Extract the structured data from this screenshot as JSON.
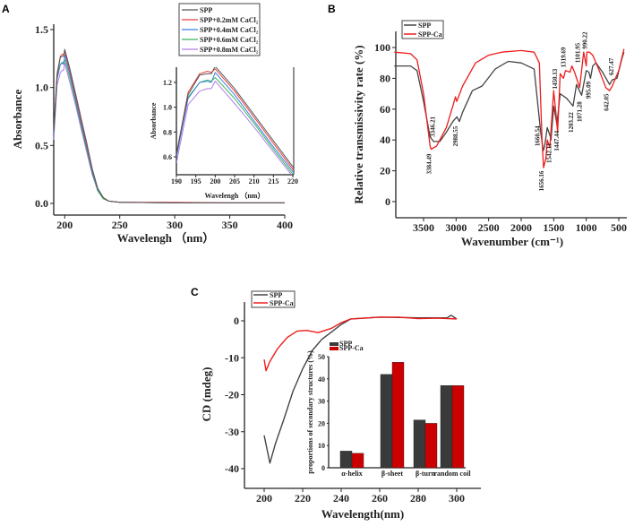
{
  "chart_data": [
    {
      "panel": "A",
      "type": "line",
      "xlabel": "Wavelengh （nm）",
      "ylabel": "Absorbance",
      "xlim": [
        190,
        400
      ],
      "ylim": [
        -0.1,
        1.5
      ],
      "xticks": [
        200,
        250,
        300,
        350,
        400
      ],
      "yticks": [
        "0.0",
        "0.5",
        "1.0",
        "1.5"
      ],
      "legend_position": "top-right",
      "x": [
        190,
        193,
        196,
        198,
        199,
        200,
        205,
        210,
        215,
        220,
        225,
        230,
        235,
        240,
        250,
        300,
        350,
        400
      ],
      "series": [
        {
          "name": "SPP",
          "color": "#555555",
          "values": [
            0.62,
            1.1,
            1.26,
            1.27,
            1.27,
            1.33,
            1.15,
            0.94,
            0.73,
            0.52,
            0.3,
            0.13,
            0.05,
            0.02,
            0.01,
            0.005,
            0.005,
            0.005
          ]
        },
        {
          "name": "SPP+0.2mM  CaCl₂",
          "color": "#e8403a",
          "values": [
            0.62,
            1.12,
            1.27,
            1.29,
            1.28,
            1.31,
            1.13,
            0.92,
            0.71,
            0.5,
            0.29,
            0.13,
            0.05,
            0.02,
            0.01,
            0.01,
            0.005,
            0.005
          ]
        },
        {
          "name": "SPP+0.4mM  CaCl₂",
          "color": "#3b7fe0",
          "values": [
            0.6,
            1.07,
            1.2,
            1.21,
            1.2,
            1.28,
            1.1,
            0.89,
            0.68,
            0.48,
            0.27,
            0.12,
            0.05,
            0.02,
            0.01,
            0.005,
            0.005,
            0.005
          ]
        },
        {
          "name": "SPP+0.6mM  CaCl₂",
          "color": "#3cb55a",
          "values": [
            0.6,
            1.08,
            1.2,
            1.22,
            1.21,
            1.24,
            1.07,
            0.87,
            0.66,
            0.46,
            0.26,
            0.11,
            0.04,
            0.02,
            0.01,
            0.005,
            0.005,
            0.005
          ]
        },
        {
          "name": "SPP+0.8mM  CaCl₂",
          "color": "#b07ee8",
          "values": [
            0.55,
            1.02,
            1.13,
            1.15,
            1.15,
            1.21,
            1.03,
            0.84,
            0.64,
            0.44,
            0.25,
            0.11,
            0.04,
            0.02,
            0.01,
            0.005,
            0.005,
            0.005
          ]
        }
      ],
      "inset": {
        "type": "line",
        "xlabel": "Wavelengh （nm）",
        "ylabel": "Absorbance",
        "xlim": [
          190,
          220
        ],
        "ylim": [
          0.45,
          1.33
        ],
        "xticks": [
          190,
          195,
          200,
          205,
          210,
          215,
          220
        ],
        "yticks": [
          "0.6",
          "0.8",
          "1.0",
          "1.2"
        ]
      }
    },
    {
      "panel": "B",
      "type": "line",
      "xlabel": "Wavenumber (cm⁻¹)",
      "ylabel": "Relative transmissivity rate (%)",
      "xlim": [
        3927,
        376
      ],
      "ylim": [
        -10.5,
        110
      ],
      "xticks": [
        3500,
        3000,
        2500,
        2000,
        1500,
        1000,
        500
      ],
      "yticks": [
        0,
        20,
        40,
        60,
        80,
        100
      ],
      "legend_position": "top-left",
      "series": [
        {
          "name": "SPP",
          "color": "#444444",
          "points": [
            [
              3950,
              88
            ],
            [
              3700,
              88
            ],
            [
              3600,
              85
            ],
            [
              3500,
              65
            ],
            [
              3400,
              42
            ],
            [
              3346,
              39
            ],
            [
              3250,
              39
            ],
            [
              3150,
              45
            ],
            [
              3050,
              52
            ],
            [
              2988,
              55
            ],
            [
              2950,
              52
            ],
            [
              2900,
              58
            ],
            [
              2750,
              72
            ],
            [
              2600,
              75
            ],
            [
              2400,
              86
            ],
            [
              2200,
              91
            ],
            [
              2000,
              90
            ],
            [
              1800,
              86
            ],
            [
              1700,
              45
            ],
            [
              1660,
              33
            ],
            [
              1640,
              36
            ],
            [
              1600,
              48
            ],
            [
              1550,
              42
            ],
            [
              1542,
              40
            ],
            [
              1500,
              62
            ],
            [
              1450,
              50
            ],
            [
              1447,
              52
            ],
            [
              1400,
              70
            ],
            [
              1300,
              67
            ],
            [
              1203,
              62
            ],
            [
              1150,
              76
            ],
            [
              1071,
              69
            ],
            [
              1000,
              85
            ],
            [
              960,
              84
            ],
            [
              935,
              80
            ],
            [
              900,
              88
            ],
            [
              850,
              90
            ],
            [
              750,
              84
            ],
            [
              642,
              76
            ],
            [
              600,
              79
            ],
            [
              527,
              80
            ],
            [
              450,
              93
            ],
            [
              420,
              97
            ]
          ]
        },
        {
          "name": "SPP-Ca",
          "color": "#ee1c1c",
          "points": [
            [
              3950,
              97
            ],
            [
              3700,
              96
            ],
            [
              3600,
              92
            ],
            [
              3500,
              70
            ],
            [
              3400,
              36
            ],
            [
              3384,
              34
            ],
            [
              3300,
              36
            ],
            [
              3150,
              48
            ],
            [
              3050,
              62
            ],
            [
              3010,
              68
            ],
            [
              2990,
              65
            ],
            [
              2900,
              75
            ],
            [
              2700,
              90
            ],
            [
              2500,
              95
            ],
            [
              2300,
              97
            ],
            [
              2000,
              98
            ],
            [
              1800,
              97
            ],
            [
              1720,
              90
            ],
            [
              1680,
              40
            ],
            [
              1656,
              22
            ],
            [
              1620,
              28
            ],
            [
              1600,
              40
            ],
            [
              1560,
              35
            ],
            [
              1500,
              72
            ],
            [
              1460,
              55
            ],
            [
              1440,
              45
            ],
            [
              1400,
              83
            ],
            [
              1350,
              80
            ],
            [
              1319,
              85
            ],
            [
              1250,
              84
            ],
            [
              1220,
              88
            ],
            [
              1180,
              84
            ],
            [
              1101,
              74
            ],
            [
              1040,
              97
            ],
            [
              1000,
              88
            ],
            [
              990,
              97
            ],
            [
              950,
              97
            ],
            [
              900,
              95
            ],
            [
              800,
              85
            ],
            [
              700,
              74
            ],
            [
              642,
              72
            ],
            [
              600,
              75
            ],
            [
              500,
              85
            ],
            [
              420,
              99
            ]
          ]
        }
      ],
      "annotations": [
        {
          "text": "3384.49",
          "x": 3384,
          "y": 31,
          "anchor": "end"
        },
        {
          "text": "3346.21",
          "x": 3330,
          "y": 42,
          "anchor": "start"
        },
        {
          "text": "2988.55",
          "x": 2980,
          "y": 49,
          "anchor": "end"
        },
        {
          "text": "1660.54",
          "x": 1720,
          "y": 36,
          "anchor": "start"
        },
        {
          "text": "1656.16",
          "x": 1656,
          "y": 20,
          "anchor": "end"
        },
        {
          "text": "1542.11",
          "x": 1540,
          "y": 38,
          "anchor": "end"
        },
        {
          "text": "1447.44",
          "x": 1440,
          "y": 46,
          "anchor": "end"
        },
        {
          "text": "1450.13",
          "x": 1450,
          "y": 73,
          "anchor": "start"
        },
        {
          "text": "1319.69",
          "x": 1319,
          "y": 87,
          "anchor": "start"
        },
        {
          "text": "1203.22",
          "x": 1203,
          "y": 58,
          "anchor": "end"
        },
        {
          "text": "1101.95",
          "x": 1101,
          "y": 90,
          "anchor": "start"
        },
        {
          "text": "1071.28",
          "x": 1071,
          "y": 65,
          "anchor": "end"
        },
        {
          "text": "990.22",
          "x": 990,
          "y": 99,
          "anchor": "start"
        },
        {
          "text": "995.09",
          "x": 930,
          "y": 78,
          "anchor": "end"
        },
        {
          "text": "642.05",
          "x": 660,
          "y": 70,
          "anchor": "end"
        },
        {
          "text": "627.47",
          "x": 580,
          "y": 82,
          "anchor": "start"
        }
      ]
    },
    {
      "panel": "C",
      "type": "line",
      "xlabel": "Wavelength(nm)",
      "ylabel": "CD (mdeg)",
      "xlim": [
        190,
        310
      ],
      "ylim": [
        -45,
        5
      ],
      "xticks": [
        200,
        220,
        240,
        260,
        280,
        300
      ],
      "yticks": [
        -40,
        -30,
        -20,
        -10,
        0
      ],
      "legend_position": "top-left",
      "series": [
        {
          "name": "SPP",
          "color": "#444444",
          "points": [
            [
              200,
              -31
            ],
            [
              203,
              -38.5
            ],
            [
              206,
              -33
            ],
            [
              210,
              -27
            ],
            [
              215,
              -19
            ],
            [
              220,
              -13
            ],
            [
              225,
              -8
            ],
            [
              230,
              -5
            ],
            [
              235,
              -3
            ],
            [
              240,
              -1
            ],
            [
              245,
              0.5
            ],
            [
              260,
              1
            ],
            [
              280,
              0.8
            ],
            [
              295,
              0.8
            ],
            [
              297,
              1.5
            ],
            [
              300,
              0.5
            ]
          ]
        },
        {
          "name": "SPP-Ca",
          "color": "#ee1c1c",
          "points": [
            [
              200,
              -10.5
            ],
            [
              201,
              -13.5
            ],
            [
              203,
              -11
            ],
            [
              207,
              -7.5
            ],
            [
              212,
              -4.5
            ],
            [
              217,
              -2.8
            ],
            [
              222,
              -2.6
            ],
            [
              228,
              -3.2
            ],
            [
              235,
              -2
            ],
            [
              240,
              -0.5
            ],
            [
              245,
              0.5
            ],
            [
              260,
              1
            ],
            [
              270,
              1
            ],
            [
              280,
              0.6
            ],
            [
              290,
              0.7
            ],
            [
              300,
              0.5
            ]
          ]
        }
      ],
      "inset": {
        "type": "bar",
        "ylabel": "proportions of secondary structures (%)",
        "ylim": [
          0,
          50
        ],
        "yticks": [
          0,
          10,
          20,
          30,
          40,
          50
        ],
        "categories": [
          "α-helix",
          "β-sheet",
          "β-turn",
          "random coil"
        ],
        "series": [
          {
            "name": "SPP",
            "color": "#3a3a3a",
            "values": [
              7.5,
              42,
              21.5,
              37
            ]
          },
          {
            "name": "SPP-Ca",
            "color": "#cc0000",
            "values": [
              6.5,
              47.5,
              20,
              37
            ]
          }
        ]
      }
    }
  ]
}
